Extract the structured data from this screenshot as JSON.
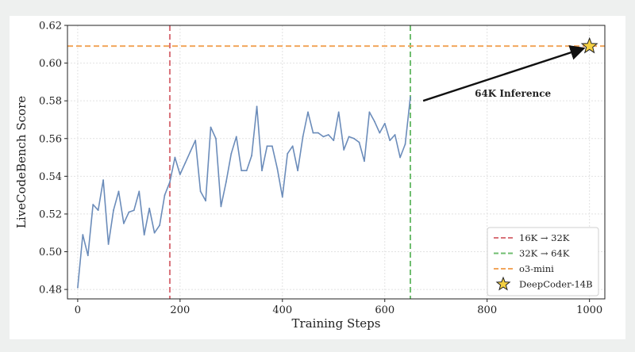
{
  "chart_data": {
    "type": "line",
    "title": "",
    "xlabel": "Training Steps",
    "ylabel": "LiveCodeBench Score",
    "xlim": [
      -20,
      1030
    ],
    "ylim": [
      0.475,
      0.62
    ],
    "xticks": [
      0,
      200,
      400,
      600,
      800,
      1000
    ],
    "yticks": [
      0.48,
      0.5,
      0.52,
      0.54,
      0.56,
      0.58,
      0.6,
      0.62
    ],
    "grid": true,
    "legend_position": "bottom-right",
    "series": [
      {
        "name": "",
        "color": "#6b8cba",
        "x": [
          0,
          10,
          20,
          30,
          40,
          50,
          60,
          70,
          80,
          90,
          100,
          110,
          120,
          130,
          140,
          150,
          160,
          170,
          180,
          190,
          200,
          210,
          220,
          230,
          240,
          250,
          260,
          270,
          280,
          290,
          300,
          310,
          320,
          330,
          340,
          350,
          360,
          370,
          380,
          390,
          400,
          410,
          420,
          430,
          440,
          450,
          460,
          470,
          480,
          490,
          500,
          510,
          520,
          530,
          540,
          550,
          560,
          570,
          580,
          590,
          600,
          610,
          620,
          630,
          640,
          650
        ],
        "y": [
          0.481,
          0.509,
          0.498,
          0.525,
          0.522,
          0.538,
          0.504,
          0.522,
          0.532,
          0.515,
          0.521,
          0.522,
          0.532,
          0.509,
          0.523,
          0.51,
          0.514,
          0.53,
          0.537,
          0.55,
          0.541,
          0.547,
          0.553,
          0.559,
          0.532,
          0.527,
          0.566,
          0.56,
          0.524,
          0.537,
          0.552,
          0.561,
          0.543,
          0.543,
          0.551,
          0.577,
          0.543,
          0.556,
          0.556,
          0.544,
          0.529,
          0.552,
          0.556,
          0.543,
          0.561,
          0.574,
          0.563,
          0.563,
          0.561,
          0.562,
          0.559,
          0.574,
          0.554,
          0.561,
          0.56,
          0.558,
          0.548,
          0.574,
          0.569,
          0.563,
          0.568,
          0.559,
          0.562,
          0.55,
          0.557,
          0.582
        ]
      }
    ],
    "reference_lines": [
      {
        "name": "16K → 32K",
        "orientation": "vertical",
        "x": 180,
        "color": "#d9727a",
        "style": "dashed"
      },
      {
        "name": "32K → 64K",
        "orientation": "vertical",
        "x": 650,
        "color": "#6fbd6f",
        "style": "dashed"
      },
      {
        "name": "o3-mini",
        "orientation": "horizontal",
        "y": 0.609,
        "color": "#f2a65c",
        "style": "dashed"
      }
    ],
    "points": [
      {
        "name": "DeepCoder-14B",
        "x": 1000,
        "y": 0.609,
        "marker": "star",
        "color": "#f5d142"
      }
    ],
    "annotations": [
      {
        "text": "64K Inference",
        "arrow_from": {
          "x": 675,
          "y": 0.58
        },
        "arrow_to": {
          "x": 985,
          "y": 0.6075
        }
      }
    ],
    "legend": [
      "16K → 32K",
      "32K → 64K",
      "o3-mini",
      "DeepCoder-14B"
    ]
  }
}
